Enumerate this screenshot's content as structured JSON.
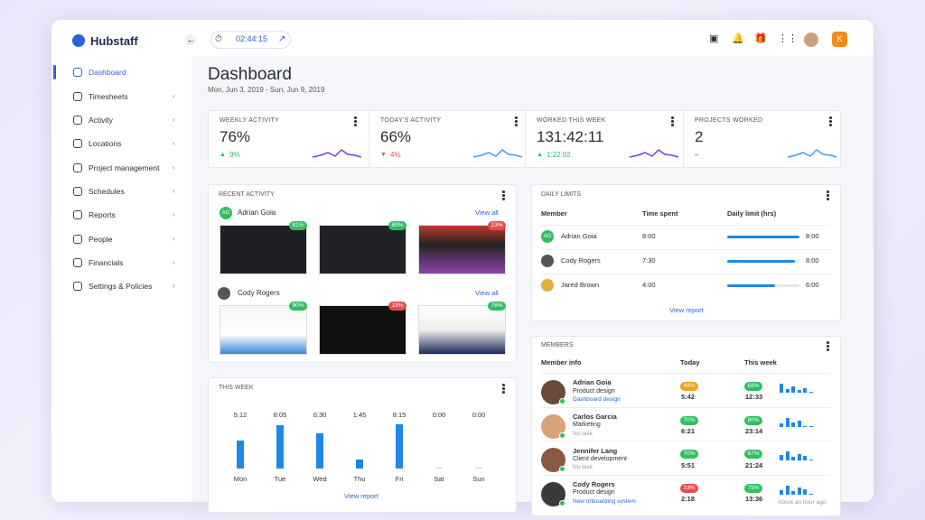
{
  "brand": "Hubstaff",
  "timer": "02:44:15",
  "user_initial": "K",
  "nav": [
    "Dashboard",
    "Timesheets",
    "Activity",
    "Locations",
    "Project management",
    "Schedules",
    "Reports",
    "People",
    "Financials",
    "Settings & Policies"
  ],
  "header": {
    "title": "Dashboard",
    "date_range": "Mon, Jun 3, 2019 - Sun, Jun 9, 2019"
  },
  "stats": [
    {
      "label": "WEEKLY ACTIVITY",
      "value": "76%",
      "change": "9%",
      "trend": "up"
    },
    {
      "label": "TODAY'S ACTIVITY",
      "value": "66%",
      "change": "4%",
      "trend": "down"
    },
    {
      "label": "WORKED THIS WEEK",
      "value": "131:42:11",
      "change": "1:22:02",
      "trend": "up"
    },
    {
      "label": "PROJECTS WORKED",
      "value": "2",
      "change": "–",
      "trend": "none"
    }
  ],
  "recent_activity": {
    "title": "RECENT ACTIVITY",
    "users": [
      {
        "initials": "AG",
        "name": "Adrian Goia",
        "link": "View all",
        "shots": [
          "81%",
          "89%",
          "23%"
        ]
      },
      {
        "name": "Cody Rogers",
        "link": "View all",
        "shots": [
          "90%",
          "19%",
          "78%"
        ]
      }
    ]
  },
  "this_week": {
    "title": "THIS WEEK",
    "days": [
      "Mon",
      "Tue",
      "Wed",
      "Thu",
      "Fri",
      "Sat",
      "Sun"
    ],
    "times": [
      "5:12",
      "8:05",
      "6:30",
      "1:45",
      "8:15",
      "0:00",
      "0:00"
    ],
    "link": "View report"
  },
  "daily_limits": {
    "title": "DAILY LIMITS",
    "columns": [
      "Member",
      "Time spent",
      "Daily limit (hrs)"
    ],
    "rows": [
      {
        "initials": "AG",
        "name": "Adrian Goia",
        "spent": "8:00",
        "limit": "8:00"
      },
      {
        "name": "Cody Rogers",
        "spent": "7:30",
        "limit": "8:00"
      },
      {
        "name": "Jared Brown",
        "spent": "4:00",
        "limit": "6:00"
      }
    ],
    "link": "View report"
  },
  "members": {
    "title": "MEMBERS",
    "columns": [
      "Member info",
      "Today",
      "This week"
    ],
    "rows": [
      {
        "name": "Adrian Goia",
        "role": "Product design",
        "task": "Dashboard design",
        "today_pct": "48%",
        "today_time": "5:42",
        "week_pct": "68%",
        "week_time": "12:33"
      },
      {
        "name": "Carlos Garcia",
        "role": "Marketing",
        "task": "No task",
        "today_pct": "70%",
        "today_time": "6:21",
        "week_pct": "80%",
        "week_time": "23:14"
      },
      {
        "name": "Jennifer Lang",
        "role": "Client development",
        "task": "No task",
        "today_pct": "70%",
        "today_time": "5:51",
        "week_pct": "67%",
        "week_time": "21:24"
      },
      {
        "name": "Cody Rogers",
        "role": "Product design",
        "task": "New onboarding system",
        "today_pct": "23%",
        "today_time": "2:18",
        "week_pct": "75%",
        "week_time": "13:36",
        "status": "About an hour ago"
      }
    ]
  }
}
